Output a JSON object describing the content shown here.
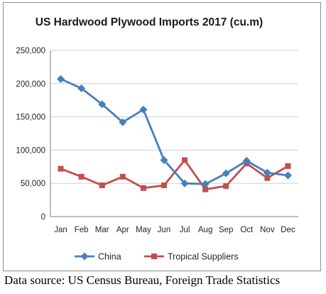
{
  "chart_data": {
    "type": "line",
    "title": "US Hardwood Plywood Imports 2017 (cu.m)",
    "categories": [
      "Jan",
      "Feb",
      "Mar",
      "Apr",
      "May",
      "Jun",
      "Jul",
      "Aug",
      "Sep",
      "Oct",
      "Nov",
      "Dec"
    ],
    "series": [
      {
        "name": "China",
        "color": "#4a7ebb",
        "marker": "diamond",
        "values": [
          207000,
          193000,
          169000,
          142000,
          161000,
          85000,
          50000,
          49000,
          65000,
          84000,
          66000,
          62000
        ]
      },
      {
        "name": "Tropical Suppliers",
        "color": "#c0504d",
        "marker": "square",
        "values": [
          72000,
          60000,
          47000,
          60000,
          43000,
          47000,
          85000,
          41000,
          46000,
          80000,
          58000,
          76000
        ]
      }
    ],
    "ylim": [
      0,
      250000
    ],
    "yticks": [
      0,
      50000,
      100000,
      150000,
      200000,
      250000
    ],
    "ytick_labels": [
      "0",
      "50,000",
      "100,000",
      "150,000",
      "200,000",
      "250,000"
    ],
    "grid": "horizontal",
    "legend_position": "bottom"
  },
  "source_note": "Data source: US Census Bureau, Foreign Trade Statistics"
}
